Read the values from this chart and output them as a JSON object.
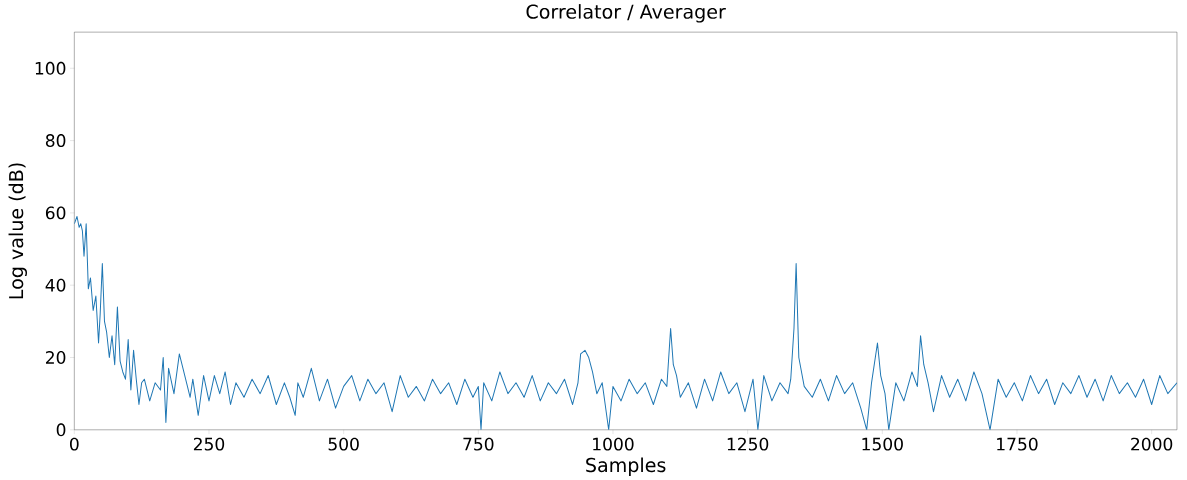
{
  "chart_data": {
    "type": "line",
    "title": "Correlator / Averager",
    "xlabel": "Samples",
    "ylabel": "Log value (dB)",
    "xlim": [
      0,
      2047
    ],
    "ylim": [
      0,
      110
    ],
    "xticks": [
      0,
      250,
      500,
      750,
      1000,
      1250,
      1500,
      1750,
      2000
    ],
    "yticks": [
      0,
      20,
      40,
      60,
      80,
      100
    ],
    "grid": false,
    "series": [
      {
        "color": "#1f77b4",
        "x": [
          0,
          5,
          9,
          12,
          15,
          18,
          22,
          26,
          30,
          35,
          40,
          45,
          48,
          52,
          56,
          60,
          65,
          70,
          75,
          80,
          85,
          90,
          95,
          100,
          105,
          110,
          115,
          120,
          125,
          130,
          140,
          150,
          160,
          165,
          170,
          175,
          185,
          195,
          210,
          215,
          220,
          230,
          240,
          250,
          260,
          270,
          280,
          290,
          300,
          315,
          330,
          345,
          360,
          375,
          390,
          400,
          410,
          415,
          425,
          440,
          455,
          470,
          485,
          500,
          515,
          530,
          545,
          560,
          575,
          590,
          605,
          620,
          635,
          650,
          665,
          680,
          695,
          710,
          725,
          740,
          750,
          755,
          760,
          775,
          790,
          805,
          820,
          835,
          850,
          865,
          880,
          895,
          910,
          925,
          935,
          940,
          948,
          955,
          962,
          970,
          980,
          992,
          1000,
          1015,
          1030,
          1045,
          1060,
          1075,
          1090,
          1100,
          1107,
          1112,
          1118,
          1125,
          1140,
          1155,
          1170,
          1185,
          1200,
          1215,
          1230,
          1245,
          1260,
          1269,
          1280,
          1295,
          1310,
          1325,
          1330,
          1336,
          1340,
          1345,
          1355,
          1370,
          1385,
          1400,
          1415,
          1430,
          1445,
          1460,
          1471,
          1480,
          1491,
          1497,
          1505,
          1512,
          1525,
          1540,
          1555,
          1565,
          1571,
          1577,
          1585,
          1595,
          1610,
          1625,
          1640,
          1655,
          1670,
          1685,
          1700,
          1715,
          1730,
          1745,
          1760,
          1775,
          1790,
          1805,
          1820,
          1835,
          1850,
          1865,
          1880,
          1895,
          1910,
          1925,
          1940,
          1955,
          1970,
          1985,
          2000,
          2015,
          2030,
          2047
        ],
        "values": [
          57,
          59,
          56,
          57,
          55,
          48,
          57,
          39,
          42,
          33,
          37,
          24,
          32,
          46,
          30,
          27,
          20,
          26,
          18,
          34,
          19,
          16,
          14,
          25,
          11,
          22,
          14,
          7,
          13,
          14,
          8,
          13,
          11,
          20,
          2,
          17,
          10,
          21,
          12,
          9,
          14,
          4,
          15,
          8,
          15,
          10,
          16,
          7,
          13,
          9,
          14,
          10,
          15,
          7,
          13,
          9,
          4,
          13,
          9,
          17,
          8,
          14,
          6,
          12,
          15,
          8,
          14,
          10,
          13,
          5,
          15,
          9,
          12,
          8,
          14,
          10,
          13,
          7,
          14,
          9,
          12,
          0,
          13,
          8,
          16,
          10,
          13,
          9,
          15,
          8,
          13,
          10,
          14,
          7,
          13,
          21,
          22,
          20,
          16,
          10,
          13,
          0,
          12,
          8,
          14,
          10,
          13,
          7,
          14,
          12,
          28,
          18,
          15,
          9,
          13,
          6,
          14,
          8,
          16,
          10,
          13,
          5,
          14,
          0,
          15,
          8,
          13,
          10,
          14,
          28,
          46,
          20,
          12,
          9,
          14,
          8,
          15,
          10,
          13,
          6,
          0,
          13,
          24,
          15,
          10,
          0,
          13,
          8,
          16,
          12,
          26,
          18,
          13,
          5,
          15,
          9,
          14,
          8,
          16,
          10,
          0,
          14,
          9,
          13,
          8,
          15,
          10,
          14,
          7,
          13,
          10,
          15,
          9,
          14,
          8,
          15,
          10,
          13,
          9,
          14,
          7,
          15,
          10,
          13
        ]
      }
    ]
  }
}
